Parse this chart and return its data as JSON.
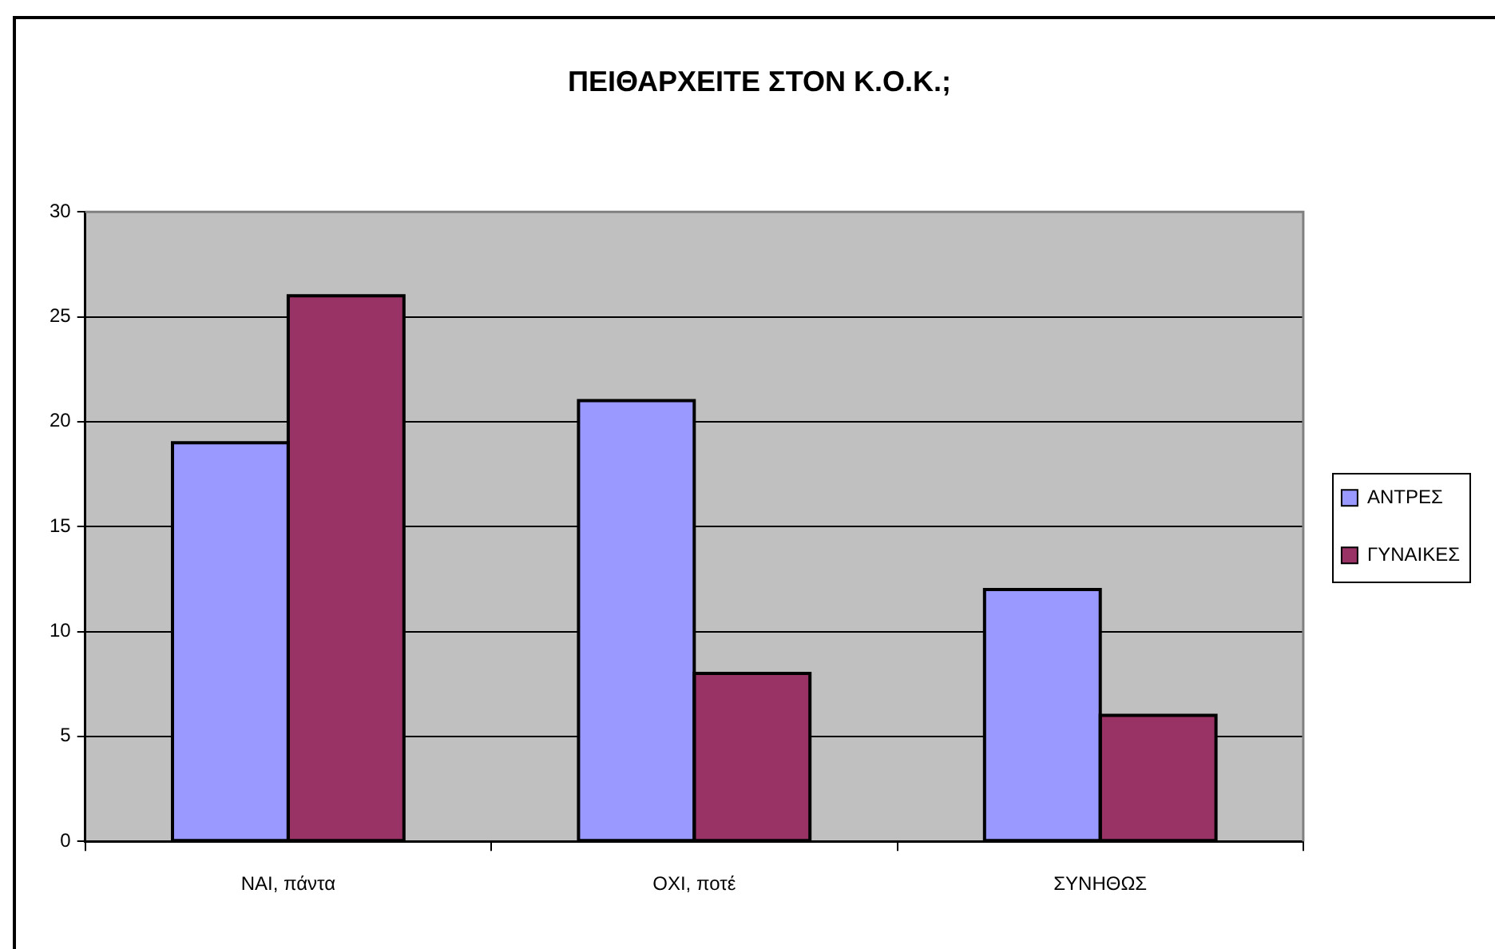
{
  "chart_data": {
    "type": "bar",
    "title": "ΠΕΙΘΑΡΧΕΙΤΕ ΣΤΟΝ Κ.Ο.Κ.;",
    "categories": [
      "ΝΑΙ, πάντα",
      "ΟΧΙ, ποτέ",
      "ΣΥΝΗΘΩΣ"
    ],
    "series": [
      {
        "name": "ΑΝΤΡΕΣ",
        "color": "#9999ff",
        "values": [
          19,
          21,
          12
        ]
      },
      {
        "name": "ΓΥΝΑΙΚΕΣ",
        "color": "#993366",
        "values": [
          26,
          8,
          6
        ]
      }
    ],
    "ylim": [
      0,
      30
    ],
    "yticks": [
      0,
      5,
      10,
      15,
      20,
      25,
      30
    ],
    "grid": "y",
    "legend": "right"
  }
}
